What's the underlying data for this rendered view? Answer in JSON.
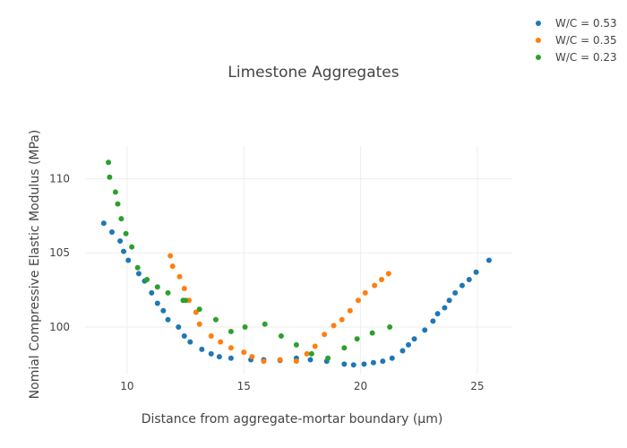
{
  "chart_data": {
    "type": "scatter",
    "title": "Limestone Aggregates",
    "xlabel": "Distance from aggregate-mortar boundary (µm)",
    "ylabel": "Nomial Compressive Elastic Modulus (MPa)",
    "xlim": [
      8.2,
      26.5
    ],
    "ylim": [
      96.8,
      112.2
    ],
    "xticks": [
      10,
      15,
      20,
      25
    ],
    "yticks": [
      100,
      105,
      110
    ],
    "grid": true,
    "legend_position": "top-right",
    "series": [
      {
        "name": "W/C = 0.53",
        "color": "#1f77b4",
        "x": [
          9.0,
          9.35,
          9.7,
          9.85,
          10.05,
          10.5,
          10.75,
          11.05,
          11.3,
          11.55,
          11.75,
          12.2,
          12.45,
          12.7,
          13.2,
          13.6,
          13.95,
          14.45,
          15.3,
          15.85,
          16.55,
          17.25,
          17.85,
          18.55,
          19.3,
          19.7,
          20.15,
          20.55,
          20.95,
          21.35,
          21.8,
          22.05,
          22.3,
          22.75,
          23.1,
          23.3,
          23.6,
          23.8,
          24.05,
          24.35,
          24.65,
          24.95,
          25.5
        ],
        "y": [
          107.0,
          106.4,
          105.8,
          105.1,
          104.5,
          103.6,
          103.1,
          102.3,
          101.6,
          101.1,
          100.5,
          100.0,
          99.4,
          99.0,
          98.5,
          98.2,
          98.0,
          97.9,
          97.8,
          97.8,
          97.75,
          97.9,
          97.8,
          97.7,
          97.5,
          97.45,
          97.5,
          97.6,
          97.7,
          97.9,
          98.4,
          98.8,
          99.2,
          99.8,
          100.4,
          100.9,
          101.3,
          101.8,
          102.3,
          102.8,
          103.2,
          103.7,
          104.5
        ]
      },
      {
        "name": "W/C = 0.35",
        "color": "#ff7f0e",
        "x": [
          11.85,
          11.95,
          12.25,
          12.45,
          12.65,
          12.95,
          13.1,
          13.6,
          14.0,
          14.45,
          15.0,
          15.35,
          15.85,
          16.55,
          17.25,
          17.7,
          18.05,
          18.45,
          18.85,
          19.2,
          19.55,
          19.9,
          20.2,
          20.6,
          20.9,
          21.2
        ],
        "y": [
          104.8,
          104.1,
          103.4,
          102.6,
          101.8,
          101.0,
          100.2,
          99.4,
          99.0,
          98.6,
          98.3,
          98.0,
          97.7,
          97.8,
          97.7,
          98.2,
          98.7,
          99.5,
          100.1,
          100.5,
          101.1,
          101.8,
          102.3,
          102.8,
          103.2,
          103.6
        ]
      },
      {
        "name": "W/C = 0.23",
        "color": "#2ca02c",
        "x": [
          9.2,
          9.25,
          9.5,
          9.6,
          9.75,
          9.95,
          10.2,
          10.45,
          10.85,
          11.3,
          11.75,
          12.4,
          12.5,
          13.1,
          13.8,
          14.45,
          15.05,
          15.9,
          16.6,
          17.25,
          17.9,
          18.6,
          19.3,
          19.85,
          20.5,
          21.25
        ],
        "y": [
          111.1,
          110.1,
          109.1,
          108.3,
          107.3,
          106.3,
          105.4,
          104.0,
          103.2,
          102.7,
          102.3,
          101.8,
          101.8,
          101.2,
          100.5,
          99.7,
          100.0,
          100.2,
          99.4,
          98.8,
          98.2,
          97.9,
          98.6,
          99.2,
          99.6,
          100.0
        ]
      }
    ]
  }
}
